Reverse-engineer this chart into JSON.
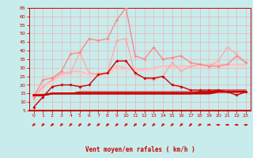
{
  "title": "",
  "xlabel": "Vent moyen/en rafales ( km/h )",
  "ylabel": "",
  "xlim": [
    -0.5,
    23.5
  ],
  "ylim": [
    5,
    65
  ],
  "yticks": [
    5,
    10,
    15,
    20,
    25,
    30,
    35,
    40,
    45,
    50,
    55,
    60,
    65
  ],
  "xticks": [
    0,
    1,
    2,
    3,
    4,
    5,
    6,
    7,
    8,
    9,
    10,
    11,
    12,
    13,
    14,
    15,
    16,
    17,
    18,
    19,
    20,
    21,
    22,
    23
  ],
  "bg_color": "#c8ecec",
  "grid_color": "#ff9999",
  "arrow_color": "#dd2222",
  "lines": [
    {
      "x": [
        0,
        1,
        2,
        3,
        4,
        5,
        6,
        7,
        8,
        9,
        10,
        11,
        12,
        13,
        14,
        15,
        16,
        17,
        18,
        19,
        20,
        21,
        22,
        23
      ],
      "y": [
        7,
        13,
        19,
        20,
        20,
        19,
        20,
        26,
        27,
        34,
        34,
        27,
        24,
        24,
        25,
        20,
        19,
        17,
        17,
        17,
        17,
        16,
        14,
        16
      ],
      "color": "#cc0000",
      "lw": 1.0,
      "marker": "D",
      "ms": 1.8,
      "zorder": 5
    },
    {
      "x": [
        0,
        1,
        2,
        3,
        4,
        5,
        6,
        7,
        8,
        9,
        10,
        11,
        12,
        13,
        14,
        15,
        16,
        17,
        18,
        19,
        20,
        21,
        22,
        23
      ],
      "y": [
        14,
        14,
        15,
        15,
        15,
        15,
        15,
        15,
        15,
        15,
        15,
        15,
        15,
        15,
        15,
        15,
        15,
        15,
        15,
        15,
        16,
        16,
        16,
        16
      ],
      "color": "#cc0000",
      "lw": 1.8,
      "marker": null,
      "ms": 0,
      "zorder": 4
    },
    {
      "x": [
        0,
        1,
        2,
        3,
        4,
        5,
        6,
        7,
        8,
        9,
        10,
        11,
        12,
        13,
        14,
        15,
        16,
        17,
        18,
        19,
        20,
        21,
        22,
        23
      ],
      "y": [
        14,
        14,
        15,
        15,
        15,
        15,
        15,
        15,
        15,
        15,
        15,
        15,
        15,
        15,
        15,
        15,
        15,
        15,
        16,
        16,
        16,
        16,
        16,
        16
      ],
      "color": "#cc0000",
      "lw": 1.4,
      "marker": null,
      "ms": 0,
      "zorder": 4
    },
    {
      "x": [
        0,
        1,
        2,
        3,
        4,
        5,
        6,
        7,
        8,
        9,
        10,
        11,
        12,
        13,
        14,
        15,
        16,
        17,
        18,
        19,
        20,
        21,
        22,
        23
      ],
      "y": [
        14,
        14,
        15,
        15,
        15,
        16,
        16,
        16,
        16,
        16,
        16,
        16,
        16,
        16,
        16,
        16,
        16,
        16,
        16,
        16,
        17,
        17,
        17,
        17
      ],
      "color": "#cc0000",
      "lw": 0.8,
      "marker": null,
      "ms": 0,
      "zorder": 4
    },
    {
      "x": [
        0,
        1,
        2,
        3,
        4,
        5,
        6,
        7,
        8,
        9,
        10,
        11,
        12,
        13,
        14,
        15,
        16,
        17,
        18,
        19,
        20,
        21,
        22,
        23
      ],
      "y": [
        12,
        19,
        23,
        27,
        27,
        39,
        27,
        26,
        27,
        46,
        47,
        26,
        24,
        23,
        25,
        33,
        28,
        31,
        32,
        31,
        34,
        42,
        38,
        33
      ],
      "color": "#ffaaaa",
      "lw": 1.0,
      "marker": "D",
      "ms": 1.8,
      "zorder": 3
    },
    {
      "x": [
        0,
        1,
        2,
        3,
        4,
        5,
        6,
        7,
        8,
        9,
        10,
        11,
        12,
        13,
        14,
        15,
        16,
        17,
        18,
        19,
        20,
        21,
        22,
        23
      ],
      "y": [
        13,
        23,
        24,
        28,
        38,
        39,
        47,
        46,
        47,
        58,
        65,
        37,
        35,
        42,
        35,
        36,
        37,
        33,
        32,
        31,
        31,
        32,
        37,
        33
      ],
      "color": "#ff8888",
      "lw": 1.0,
      "marker": "D",
      "ms": 1.8,
      "zorder": 3
    },
    {
      "x": [
        0,
        1,
        2,
        3,
        4,
        5,
        6,
        7,
        8,
        9,
        10,
        11,
        12,
        13,
        14,
        15,
        16,
        17,
        18,
        19,
        20,
        21,
        22,
        23
      ],
      "y": [
        14,
        19,
        23,
        26,
        28,
        28,
        26,
        27,
        27,
        31,
        30,
        29,
        29,
        30,
        31,
        31,
        31,
        31,
        32,
        32,
        32,
        32,
        32,
        32
      ],
      "color": "#ffbbbb",
      "lw": 1.2,
      "marker": null,
      "ms": 0,
      "zorder": 2
    },
    {
      "x": [
        0,
        1,
        2,
        3,
        4,
        5,
        6,
        7,
        8,
        9,
        10,
        11,
        12,
        13,
        14,
        15,
        16,
        17,
        18,
        19,
        20,
        21,
        22,
        23
      ],
      "y": [
        13,
        18,
        22,
        25,
        27,
        27,
        26,
        26,
        26,
        29,
        29,
        28,
        28,
        29,
        30,
        30,
        30,
        30,
        31,
        31,
        31,
        31,
        31,
        31
      ],
      "color": "#ffcccc",
      "lw": 1.2,
      "marker": null,
      "ms": 0,
      "zorder": 2
    }
  ],
  "arrow_angles_deg": [
    45,
    45,
    45,
    45,
    45,
    45,
    45,
    45,
    45,
    45,
    45,
    45,
    45,
    45,
    45,
    45,
    45,
    45,
    30,
    15,
    0,
    0,
    0,
    0
  ]
}
